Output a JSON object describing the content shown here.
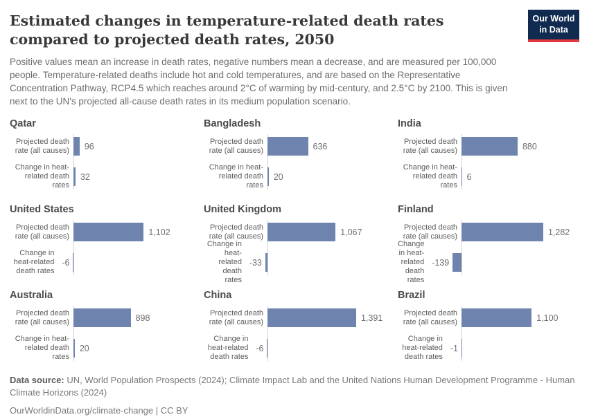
{
  "header": {
    "title": "Estimated changes in temperature-related death rates compared to projected death rates, 2050",
    "subtitle": "Positive values mean an increase in death rates, negative numbers mean a decrease, and are measured per 100,000 people. Temperature-related deaths include hot and cold temperatures, and are based on the Representative Concentration Pathway, RCP4.5 which reaches around 2°C of warming by mid-century, and 2.5°C by 2100. This is given next to the UN's projected all-cause death rates in its medium population scenario.",
    "logo": {
      "line1": "Our World",
      "line2": "in Data",
      "bg_color": "#102a50",
      "accent_color": "#e0393f"
    }
  },
  "chart_data": {
    "type": "bar",
    "orientation": "horizontal",
    "layout": "3x3 small multiples, shared x scale, zero axis line per facet, negative bars extend left",
    "bar_color": "#6e83ad",
    "metrics": [
      "Projected death rate (all causes)",
      "Change in heat-related death rates"
    ],
    "panels": [
      {
        "country": "Qatar",
        "values": {
          "projected": 96,
          "change": 32
        },
        "labels": {
          "projected": "96",
          "change": "32"
        }
      },
      {
        "country": "Bangladesh",
        "values": {
          "projected": 636,
          "change": 20
        },
        "labels": {
          "projected": "636",
          "change": "20"
        }
      },
      {
        "country": "India",
        "values": {
          "projected": 880,
          "change": 6
        },
        "labels": {
          "projected": "880",
          "change": "6"
        }
      },
      {
        "country": "United States",
        "values": {
          "projected": 1102,
          "change": -6
        },
        "labels": {
          "projected": "1,102",
          "change": "-6"
        }
      },
      {
        "country": "United Kingdom",
        "values": {
          "projected": 1067,
          "change": -33
        },
        "labels": {
          "projected": "1,067",
          "change": "-33"
        }
      },
      {
        "country": "Finland",
        "values": {
          "projected": 1282,
          "change": -139
        },
        "labels": {
          "projected": "1,282",
          "change": "-139"
        }
      },
      {
        "country": "Australia",
        "values": {
          "projected": 898,
          "change": 20
        },
        "labels": {
          "projected": "898",
          "change": "20"
        }
      },
      {
        "country": "China",
        "values": {
          "projected": 1391,
          "change": -6
        },
        "labels": {
          "projected": "1,391",
          "change": "-6"
        }
      },
      {
        "country": "Brazil",
        "values": {
          "projected": 1100,
          "change": -1
        },
        "labels": {
          "projected": "1,100",
          "change": "-1"
        }
      }
    ]
  },
  "footer": {
    "source_label": "Data source:",
    "source_text": " UN, World Population Prospects (2024); Climate Impact Lab and the United Nations Human Development Programme - Human Climate Horizons (2024)",
    "link_text": "OurWorldinData.org/climate-change | CC BY"
  }
}
